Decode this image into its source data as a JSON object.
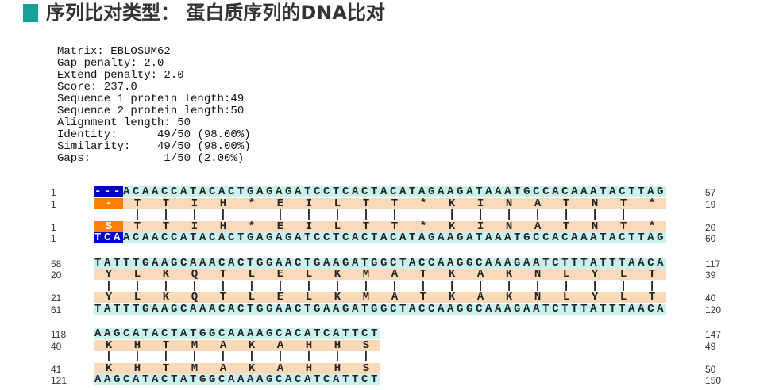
{
  "header": {
    "title": "序列比对类型： 蛋白质序列的DNA比对"
  },
  "stats": [
    "Matrix: EBLOSUM62",
    "Gap penalty: 2.0",
    "Extend penalty: 2.0",
    "Score: 237.0",
    "Sequence 1 protein length:49",
    "Sequence 2 protein length:50",
    "Alignment length: 50",
    "Identity:      49/50 (98.00%)",
    "Similarity:    49/50 (98.00%)",
    "Gaps:           1/50 (2.00%)"
  ],
  "blocks": [
    {
      "seq1_dna": {
        "start": 1,
        "highlight": "---",
        "seq": "ACAACCATACACTGAGAGATCCTCACTACATAGAAGATAAATGCCACAAATACTTAG",
        "end": 57
      },
      "seq1_protein": {
        "start": 1,
        "highlight": "-",
        "seq": "TTIH*EILTT*KINATNT*",
        "end": 19
      },
      "match": " |||| ||||| ||||||| ",
      "seq2_protein": {
        "start": 1,
        "highlight": "S",
        "seq": "TTIH*EILTT*KINATNT*",
        "end": 20
      },
      "seq2_dna": {
        "start": 1,
        "highlight": "TCA",
        "seq": "ACAACCATACACTGAGAGATCCTCACTACATAGAAGATAAATGCCACAAATACTTAG",
        "end": 60
      }
    },
    {
      "seq1_dna": {
        "start": 58,
        "seq": "TATTTGAAGCAAACACTGGAACTGAAGATGGCTACCAAGGCAAAGAATCTTTATTTAACA",
        "end": 117
      },
      "seq1_protein": {
        "start": 20,
        "seq": "YLKQTLELKMATKAKNLYLT",
        "end": 39
      },
      "match": "||||||||||||||||||||",
      "seq2_protein": {
        "start": 21,
        "seq": "YLKQTLELKMATKAKNLYLT",
        "end": 40
      },
      "seq2_dna": {
        "start": 61,
        "seq": "TATTTGAAGCAAACACTGGAACTGAAGATGGCTACCAAGGCAAAGAATCTTTATTTAACA",
        "end": 120
      }
    },
    {
      "seq1_dna": {
        "start": 118,
        "seq": "AAGCATACTATGGCAAAAGCACATCATTCT",
        "end": 147
      },
      "seq1_protein": {
        "start": 40,
        "seq": "KHTMAKAHHS",
        "end": 49
      },
      "match": "||||||||||",
      "seq2_protein": {
        "start": 41,
        "seq": "KHTMAKAHHS",
        "end": 50
      },
      "seq2_dna": {
        "start": 121,
        "seq": "AAGCATACTATGGCAAAAGCACATCATTCT",
        "end": 150
      }
    }
  ]
}
